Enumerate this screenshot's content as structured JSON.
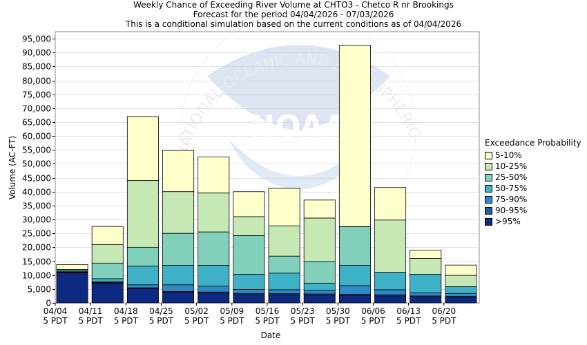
{
  "titles": {
    "line1": "Weekly Chance of Exceeding River Volume at CHTO3 - Chetco R nr Brookings",
    "line2": "Forecast for the period 04/04/2026 - 07/03/2026",
    "line3": "This is a conditional simulation based on the current conditions as of 04/04/2026"
  },
  "watermark": {
    "arc_text": "NATIONAL OCEANIC AND ATMOSPHERIC ADMINISTRATION",
    "logo_text": "NOAA"
  },
  "chart_data": {
    "type": "bar",
    "stacked": true,
    "xlabel": "Date",
    "ylabel": "Volume (AC-FT)",
    "ylim": [
      0,
      97500
    ],
    "yticks": [
      0,
      5000,
      10000,
      15000,
      20000,
      25000,
      30000,
      35000,
      40000,
      45000,
      50000,
      55000,
      60000,
      65000,
      70000,
      75000,
      80000,
      85000,
      90000,
      95000
    ],
    "ytick_labels": [
      "0",
      "5,000",
      "10,000",
      "15,000",
      "20,000",
      "25,000",
      "30,000",
      "35,000",
      "40,000",
      "45,000",
      "50,000",
      "55,000",
      "60,000",
      "65,000",
      "70,000",
      "75,000",
      "80,000",
      "85,000",
      "90,000",
      "95,000"
    ],
    "categories": [
      "04/04",
      "04/11",
      "04/18",
      "04/25",
      "05/02",
      "05/09",
      "05/16",
      "05/23",
      "05/30",
      "06/06",
      "06/13",
      "06/20"
    ],
    "xtick_labels": [
      [
        "04/04",
        "5 PDT"
      ],
      [
        "04/11",
        "5 PDT"
      ],
      [
        "04/18",
        "5 PDT"
      ],
      [
        "04/25",
        "5 PDT"
      ],
      [
        "05/02",
        "5 PDT"
      ],
      [
        "05/09",
        "5 PDT"
      ],
      [
        "05/16",
        "5 PDT"
      ],
      [
        "05/23",
        "5 PDT"
      ],
      [
        "05/30",
        "5 PDT"
      ],
      [
        "06/06",
        "5 PDT"
      ],
      [
        "06/13",
        "5 PDT"
      ],
      [
        "06/20",
        "5 PDT"
      ]
    ],
    "legend_title": "Exceedance Probability",
    "legend_position": "right",
    "grid": true,
    "series": [
      {
        "name": ">95%",
        "color": "#0d2a80",
        "tops": [
          10800,
          7000,
          5200,
          3900,
          3500,
          3000,
          2900,
          2800,
          2700,
          2500,
          2200,
          2000
        ]
      },
      {
        "name": "90-95%",
        "color": "#1f5aa0",
        "tops": [
          11000,
          7300,
          5400,
          4100,
          3900,
          3400,
          3300,
          3200,
          3100,
          2900,
          2500,
          2300
        ]
      },
      {
        "name": "75-90%",
        "color": "#2e8ac4",
        "tops": [
          11200,
          7600,
          6500,
          6500,
          6000,
          4800,
          4700,
          4500,
          6200,
          4700,
          3600,
          3400
        ]
      },
      {
        "name": "50-75%",
        "color": "#3fb1c6",
        "tops": [
          11500,
          8700,
          13200,
          13500,
          13500,
          10300,
          10700,
          7100,
          13500,
          11000,
          10300,
          5800
        ]
      },
      {
        "name": "25-50%",
        "color": "#80d0bb",
        "tops": [
          12000,
          14300,
          20000,
          25000,
          25500,
          24200,
          16800,
          14900,
          27400,
          11000,
          10300,
          5800
        ]
      },
      {
        "name": "10-25%",
        "color": "#c6e8b5",
        "tops": [
          12000,
          21000,
          44000,
          40000,
          39500,
          31000,
          27700,
          30500,
          27400,
          29800,
          16000,
          9900
        ]
      },
      {
        "name": "5-10%",
        "color": "#ffffcc",
        "tops": [
          13800,
          27500,
          67000,
          54800,
          52500,
          40000,
          41200,
          37000,
          92700,
          41500,
          19000,
          13600
        ]
      }
    ]
  }
}
